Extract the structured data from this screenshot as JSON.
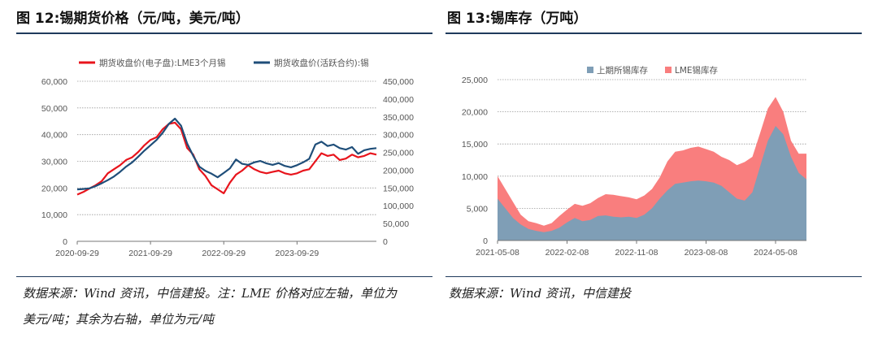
{
  "left": {
    "title": "图 12:锡期货价格（元/吨，美元/吨）",
    "source_line1": "数据来源：Wind 资讯，中信建投。注：LME 价格对应左轴，单位为",
    "source_line2": "美元/吨；其余为右轴，单位为元/吨"
  },
  "right": {
    "title": "图 13:锡库存（万吨）",
    "source_line1": "数据来源：Wind 资讯，中信建投"
  },
  "chart_data": [
    {
      "type": "line",
      "title": "锡期货价格",
      "x_ticks": [
        "2020-09-29",
        "2021-09-29",
        "2022-09-29",
        "2023-09-29"
      ],
      "left_axis": {
        "ylim": [
          0,
          60000
        ],
        "ticks": [
          "0",
          "10,000",
          "20,000",
          "30,000",
          "40,000",
          "50,000",
          "60,000"
        ]
      },
      "right_axis": {
        "ylim": [
          0,
          450000
        ],
        "ticks": [
          "0",
          "50,000",
          "100,000",
          "150,000",
          "200,000",
          "250,000",
          "300,000",
          "350,000",
          "400,000",
          "450,000"
        ]
      },
      "x_range_months": [
        0,
        49
      ],
      "series": [
        {
          "name": "期货收盘价(电子盘):LME3个月锡",
          "axis": "left",
          "color": "#e8141c",
          "points": [
            [
              0,
              17500
            ],
            [
              1,
              18500
            ],
            [
              2,
              19800
            ],
            [
              3,
              21000
            ],
            [
              4,
              22500
            ],
            [
              5,
              25500
            ],
            [
              6,
              27000
            ],
            [
              7,
              28500
            ],
            [
              8,
              30500
            ],
            [
              9,
              31500
            ],
            [
              10,
              33500
            ],
            [
              11,
              36000
            ],
            [
              12,
              38000
            ],
            [
              13,
              39000
            ],
            [
              14,
              42000
            ],
            [
              15,
              44000
            ],
            [
              16,
              44500
            ],
            [
              17,
              42000
            ],
            [
              18,
              35000
            ],
            [
              19,
              32500
            ],
            [
              20,
              27000
            ],
            [
              21,
              24500
            ],
            [
              22,
              21000
            ],
            [
              23,
              19500
            ],
            [
              24,
              18000
            ],
            [
              25,
              22000
            ],
            [
              26,
              25000
            ],
            [
              27,
              26500
            ],
            [
              28,
              28500
            ],
            [
              29,
              27000
            ],
            [
              30,
              26000
            ],
            [
              31,
              25500
            ],
            [
              32,
              26000
            ],
            [
              33,
              26500
            ],
            [
              34,
              25500
            ],
            [
              35,
              25000
            ],
            [
              36,
              25500
            ],
            [
              37,
              26500
            ],
            [
              38,
              27000
            ],
            [
              39,
              30000
            ],
            [
              40,
              33000
            ],
            [
              41,
              32000
            ],
            [
              42,
              32500
            ],
            [
              43,
              30500
            ],
            [
              44,
              31000
            ],
            [
              45,
              32500
            ],
            [
              46,
              31500
            ],
            [
              47,
              32000
            ],
            [
              48,
              33000
            ],
            [
              49,
              32500
            ]
          ]
        },
        {
          "name": "期货收盘价(活跃合约):锡",
          "axis": "right",
          "color": "#1f4e79",
          "points": [
            [
              0,
              146000
            ],
            [
              1,
              147000
            ],
            [
              2,
              149000
            ],
            [
              3,
              155000
            ],
            [
              4,
              163000
            ],
            [
              5,
              172000
            ],
            [
              6,
              182000
            ],
            [
              7,
              195000
            ],
            [
              8,
              210000
            ],
            [
              9,
              222000
            ],
            [
              10,
              238000
            ],
            [
              11,
              255000
            ],
            [
              12,
              270000
            ],
            [
              13,
              285000
            ],
            [
              14,
              305000
            ],
            [
              15,
              330000
            ],
            [
              16,
              345000
            ],
            [
              17,
              325000
            ],
            [
              18,
              275000
            ],
            [
              19,
              240000
            ],
            [
              20,
              210000
            ],
            [
              21,
              198000
            ],
            [
              22,
              190000
            ],
            [
              23,
              180000
            ],
            [
              24,
              192000
            ],
            [
              25,
              205000
            ],
            [
              26,
              230000
            ],
            [
              27,
              218000
            ],
            [
              28,
              215000
            ],
            [
              29,
              222000
            ],
            [
              30,
              226000
            ],
            [
              31,
              219000
            ],
            [
              32,
              215000
            ],
            [
              33,
              220000
            ],
            [
              34,
              212000
            ],
            [
              35,
              208000
            ],
            [
              36,
              214000
            ],
            [
              37,
              222000
            ],
            [
              38,
              232000
            ],
            [
              39,
              272000
            ],
            [
              40,
              280000
            ],
            [
              41,
              268000
            ],
            [
              42,
              272000
            ],
            [
              43,
              262000
            ],
            [
              44,
              258000
            ],
            [
              45,
              265000
            ],
            [
              46,
              246000
            ],
            [
              47,
              256000
            ],
            [
              48,
              260000
            ],
            [
              49,
              262000
            ]
          ]
        }
      ],
      "legend_position": "top"
    },
    {
      "type": "area",
      "title": "锡库存",
      "x_ticks": [
        "2021-05-08",
        "2022-02-08",
        "2022-11-08",
        "2023-08-08",
        "2024-05-08"
      ],
      "y_ticks": [
        "0",
        "5,000",
        "10,000",
        "15,000",
        "20,000",
        "25,000"
      ],
      "ylim": [
        0,
        25000
      ],
      "x_range_months": [
        0,
        40
      ],
      "stacked": true,
      "series": [
        {
          "name": "上期所锡库存",
          "color": "#7f9eb6",
          "points": [
            [
              0,
              6500
            ],
            [
              1,
              5000
            ],
            [
              2,
              3500
            ],
            [
              3,
              2500
            ],
            [
              4,
              1800
            ],
            [
              5,
              1500
            ],
            [
              6,
              1300
            ],
            [
              7,
              1500
            ],
            [
              8,
              2000
            ],
            [
              9,
              2800
            ],
            [
              10,
              3500
            ],
            [
              11,
              3000
            ],
            [
              12,
              3200
            ],
            [
              13,
              3800
            ],
            [
              14,
              3900
            ],
            [
              15,
              3700
            ],
            [
              16,
              3600
            ],
            [
              17,
              3700
            ],
            [
              18,
              3500
            ],
            [
              19,
              4000
            ],
            [
              20,
              5000
            ],
            [
              21,
              6500
            ],
            [
              22,
              7800
            ],
            [
              23,
              8800
            ],
            [
              24,
              9000
            ],
            [
              25,
              9200
            ],
            [
              26,
              9300
            ],
            [
              27,
              9200
            ],
            [
              28,
              9000
            ],
            [
              29,
              8500
            ],
            [
              30,
              7500
            ],
            [
              31,
              6500
            ],
            [
              32,
              6200
            ],
            [
              33,
              7500
            ],
            [
              34,
              11500
            ],
            [
              35,
              15500
            ],
            [
              36,
              17800
            ],
            [
              37,
              16500
            ],
            [
              38,
              13000
            ],
            [
              39,
              10500
            ],
            [
              40,
              9500
            ]
          ]
        },
        {
          "name": "LME锡库存",
          "color": "#f97e7e",
          "points": [
            [
              0,
              3500
            ],
            [
              1,
              3000
            ],
            [
              2,
              2500
            ],
            [
              3,
              1500
            ],
            [
              4,
              1200
            ],
            [
              5,
              1200
            ],
            [
              6,
              1000
            ],
            [
              7,
              1200
            ],
            [
              8,
              1800
            ],
            [
              9,
              2000
            ],
            [
              10,
              2200
            ],
            [
              11,
              2400
            ],
            [
              12,
              2600
            ],
            [
              13,
              2800
            ],
            [
              14,
              3300
            ],
            [
              15,
              3400
            ],
            [
              16,
              3300
            ],
            [
              17,
              3000
            ],
            [
              18,
              2900
            ],
            [
              19,
              3000
            ],
            [
              20,
              3000
            ],
            [
              21,
              3300
            ],
            [
              22,
              4500
            ],
            [
              23,
              5000
            ],
            [
              24,
              5000
            ],
            [
              25,
              5200
            ],
            [
              26,
              5300
            ],
            [
              27,
              5000
            ],
            [
              28,
              4800
            ],
            [
              29,
              4500
            ],
            [
              30,
              5000
            ],
            [
              31,
              5200
            ],
            [
              32,
              6000
            ],
            [
              33,
              5500
            ],
            [
              34,
              5200
            ],
            [
              35,
              5000
            ],
            [
              36,
              4500
            ],
            [
              37,
              3500
            ],
            [
              38,
              2500
            ],
            [
              39,
              3000
            ],
            [
              40,
              4000
            ]
          ]
        }
      ],
      "legend_position": "top"
    }
  ]
}
